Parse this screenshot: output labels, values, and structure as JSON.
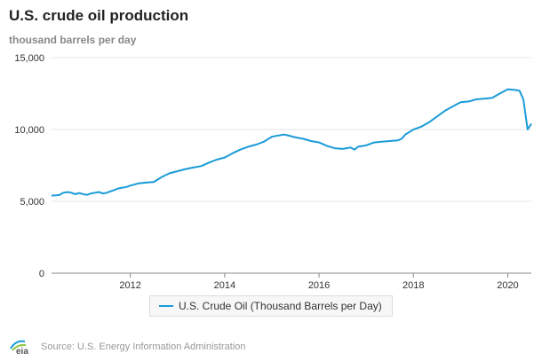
{
  "colors": {
    "series": "#1a9bd7",
    "grid": "#e6e6e6",
    "axis": "#888888"
  },
  "footer": {
    "logo_text": "eia",
    "source": "Source: U.S. Energy Information Administration"
  },
  "chart_data": {
    "type": "line",
    "title": "U.S. crude oil production",
    "subtitle": "thousand barrels per day",
    "xlabel": "",
    "ylabel": "",
    "ylim": [
      0,
      15000
    ],
    "yticks": [
      0,
      5000,
      10000,
      15000
    ],
    "ytick_labels": [
      "0",
      "5,000",
      "10,000",
      "15,000"
    ],
    "xlim": [
      2010.33,
      2020.5
    ],
    "xticks": [
      2012,
      2014,
      2016,
      2018,
      2020
    ],
    "xtick_labels": [
      "2012",
      "2014",
      "2016",
      "2018",
      "2020"
    ],
    "grid": "horizontal",
    "legend_position": "bottom-center",
    "series": [
      {
        "name": "U.S. Crude Oil (Thousand Barrels per Day)",
        "x": [
          2010.33,
          2010.42,
          2010.5,
          2010.58,
          2010.67,
          2010.75,
          2010.83,
          2010.92,
          2011.0,
          2011.08,
          2011.17,
          2011.25,
          2011.33,
          2011.42,
          2011.5,
          2011.58,
          2011.67,
          2011.75,
          2011.83,
          2011.92,
          2012.0,
          2012.17,
          2012.33,
          2012.5,
          2012.67,
          2012.83,
          2013.0,
          2013.17,
          2013.33,
          2013.5,
          2013.67,
          2013.83,
          2014.0,
          2014.17,
          2014.33,
          2014.5,
          2014.67,
          2014.83,
          2015.0,
          2015.08,
          2015.17,
          2015.25,
          2015.33,
          2015.5,
          2015.67,
          2015.83,
          2016.0,
          2016.17,
          2016.33,
          2016.5,
          2016.58,
          2016.67,
          2016.75,
          2016.83,
          2016.92,
          2017.0,
          2017.17,
          2017.33,
          2017.5,
          2017.67,
          2017.75,
          2017.83,
          2018.0,
          2018.17,
          2018.33,
          2018.5,
          2018.67,
          2018.83,
          2019.0,
          2019.17,
          2019.33,
          2019.5,
          2019.67,
          2019.83,
          2020.0,
          2020.17,
          2020.25,
          2020.33,
          2020.42,
          2020.5
        ],
        "values": [
          5400,
          5420,
          5450,
          5600,
          5650,
          5600,
          5500,
          5580,
          5500,
          5450,
          5550,
          5600,
          5650,
          5550,
          5600,
          5700,
          5800,
          5900,
          5950,
          6000,
          6100,
          6250,
          6300,
          6350,
          6700,
          6950,
          7100,
          7250,
          7350,
          7450,
          7700,
          7900,
          8050,
          8350,
          8600,
          8800,
          8950,
          9150,
          9500,
          9550,
          9600,
          9650,
          9600,
          9450,
          9350,
          9200,
          9100,
          8850,
          8700,
          8650,
          8700,
          8750,
          8600,
          8800,
          8850,
          8900,
          9100,
          9150,
          9200,
          9250,
          9350,
          9650,
          10000,
          10200,
          10500,
          10900,
          11300,
          11600,
          11900,
          11950,
          12100,
          12150,
          12200,
          12500,
          12800,
          12750,
          12700,
          12100,
          10000,
          10400
        ]
      }
    ]
  }
}
